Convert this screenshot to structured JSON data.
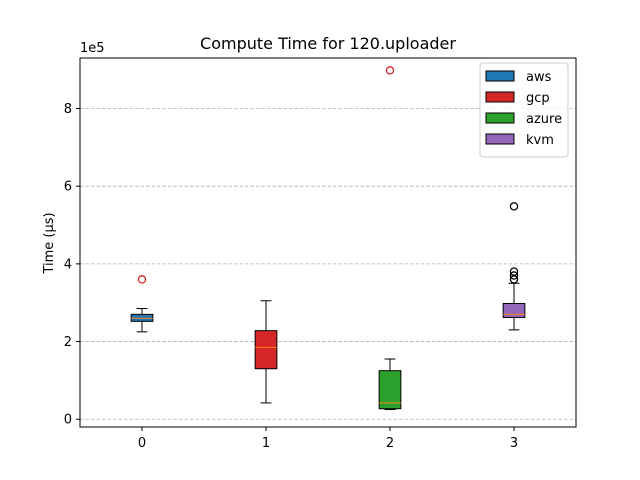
{
  "chart_data": {
    "type": "box",
    "title": "Compute Time for 120.uploader",
    "xlabel": "",
    "ylabel": "Time (µs)",
    "y_offset_label": "1e5",
    "y_scale": 100000,
    "xlim": [
      -0.5,
      3.5
    ],
    "ylim": [
      -0.2,
      9.3
    ],
    "x_ticks": [
      "0",
      "1",
      "2",
      "3"
    ],
    "y_ticks": [
      0,
      2,
      4,
      6,
      8
    ],
    "grid": "y-dashed",
    "legend_position": "top-right",
    "series": [
      {
        "name": "aws",
        "x": 0,
        "color": "#1f77b4",
        "whisker_low": 2.25,
        "q1": 2.52,
        "median": 2.6,
        "q3": 2.7,
        "whisker_high": 2.85,
        "outliers": [
          3.6
        ],
        "outlier_color": "#d62728"
      },
      {
        "name": "gcp",
        "x": 1,
        "color": "#d62728",
        "whisker_low": 0.42,
        "q1": 1.3,
        "median": 1.85,
        "q3": 2.28,
        "whisker_high": 3.05,
        "outliers": [],
        "outlier_color": "#d62728"
      },
      {
        "name": "azure",
        "x": 2,
        "color": "#2ca02c",
        "whisker_low": 0.25,
        "q1": 0.27,
        "median": 0.42,
        "q3": 1.25,
        "whisker_high": 1.55,
        "outliers": [
          8.98
        ],
        "outlier_color": "#d62728"
      },
      {
        "name": "kvm",
        "x": 3,
        "color": "#9467bd",
        "whisker_low": 2.3,
        "q1": 2.62,
        "median": 2.7,
        "q3": 2.98,
        "whisker_high": 3.5,
        "outliers": [
          5.48,
          3.8,
          3.7,
          3.6
        ],
        "outlier_color": "#000000"
      }
    ],
    "median_color": "#ff7f0e"
  }
}
